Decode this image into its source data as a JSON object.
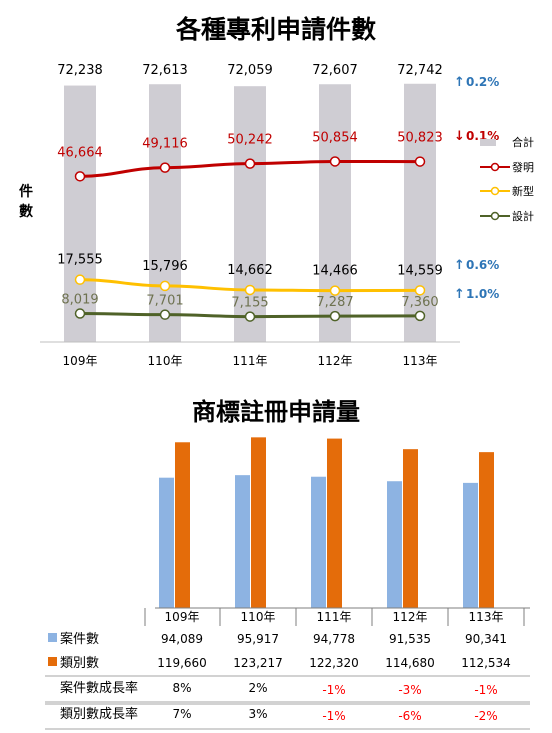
{
  "chart_data": [
    {
      "type": "bar+line",
      "title": "各種專利申請件數",
      "ylabel": "件數",
      "categories": [
        "109年",
        "110年",
        "111年",
        "112年",
        "113年"
      ],
      "series": [
        {
          "name": "合計",
          "kind": "bar",
          "color": "#cfcdd3",
          "values": [
            72238,
            72613,
            72059,
            72607,
            72742
          ],
          "labels": [
            "72,238",
            "72,613",
            "72,059",
            "72,607",
            "72,742"
          ]
        },
        {
          "name": "發明",
          "kind": "line",
          "color": "#c00000",
          "values": [
            46664,
            49116,
            50242,
            50854,
            50823
          ],
          "labels": [
            "46,664",
            "49,116",
            "50,242",
            "50,854",
            "50,823"
          ]
        },
        {
          "name": "新型",
          "kind": "line",
          "color": "#ffc000",
          "values": [
            17555,
            15796,
            14662,
            14466,
            14559
          ],
          "labels": [
            "17,555",
            "15,796",
            "14,662",
            "14,466",
            "14,559"
          ]
        },
        {
          "name": "設計",
          "kind": "line",
          "color": "#4f6228",
          "values": [
            8019,
            7701,
            7155,
            7287,
            7360
          ],
          "labels": [
            "8,019",
            "7,701",
            "7,155",
            "7,287",
            "7,360"
          ]
        }
      ],
      "growth_annotations": [
        {
          "series": "合計",
          "direction": "up",
          "text": "0.2%",
          "color": "#2e75b6"
        },
        {
          "series": "發明",
          "direction": "down",
          "text": "0.1%",
          "color": "#c00000"
        },
        {
          "series": "新型",
          "direction": "up",
          "text": "0.6%",
          "color": "#2e75b6"
        },
        {
          "series": "設計",
          "direction": "up",
          "text": "1.0%",
          "color": "#2e75b6"
        }
      ],
      "legend": "right"
    },
    {
      "type": "bar",
      "title": "商標註冊申請量",
      "categories": [
        "109年",
        "110年",
        "111年",
        "112年",
        "113年"
      ],
      "series": [
        {
          "name": "案件數",
          "color": "#8db3e2",
          "values": [
            94089,
            95917,
            94778,
            91535,
            90341
          ],
          "labels": [
            "94,089",
            "95,917",
            "94,778",
            "91,535",
            "90,341"
          ]
        },
        {
          "name": "類別數",
          "color": "#e46c0a",
          "values": [
            119660,
            123217,
            122320,
            114680,
            112534
          ],
          "labels": [
            "119,660",
            "123,217",
            "122,320",
            "114,680",
            "112,534"
          ]
        }
      ],
      "table_rows": [
        {
          "label": "案件數成長率",
          "values": [
            "8%",
            "2%",
            "-1%",
            "-3%",
            "-1%"
          ]
        },
        {
          "label": "類別數成長率",
          "values": [
            "7%",
            "3%",
            "-1%",
            "-6%",
            "-2%"
          ]
        }
      ],
      "negative_color": "#ff0000"
    }
  ]
}
